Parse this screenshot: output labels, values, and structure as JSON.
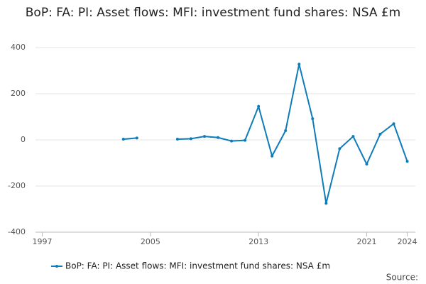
{
  "chart_data": {
    "type": "line",
    "title": "BoP: FA: PI: Asset flows: MFI: investment fund shares: NSA £m",
    "x": [
      2003,
      2004,
      2005,
      2006,
      2007,
      2008,
      2009,
      2010,
      2011,
      2012,
      2013,
      2014,
      2015,
      2016,
      2017,
      2018,
      2019,
      2020,
      2021,
      2022,
      2023,
      2024
    ],
    "series": [
      {
        "name": "BoP: FA: PI: Asset flows: MFI: investment fund shares: NSA £m",
        "color": "#0f7cba",
        "values": [
          3,
          8,
          null,
          null,
          3,
          5,
          15,
          10,
          -5,
          -2,
          145,
          -70,
          40,
          328,
          92,
          -275,
          -38,
          15,
          -105,
          25,
          70,
          -93
        ]
      }
    ],
    "xlim": [
      1996.5,
      2024.6
    ],
    "xticks": [
      1997,
      2005,
      2013,
      2021,
      2024
    ],
    "ylim": [
      -400,
      400
    ],
    "yticks": [
      -400,
      -200,
      0,
      200,
      400
    ],
    "grid": true,
    "legend": "bottom",
    "source": "Source:"
  }
}
